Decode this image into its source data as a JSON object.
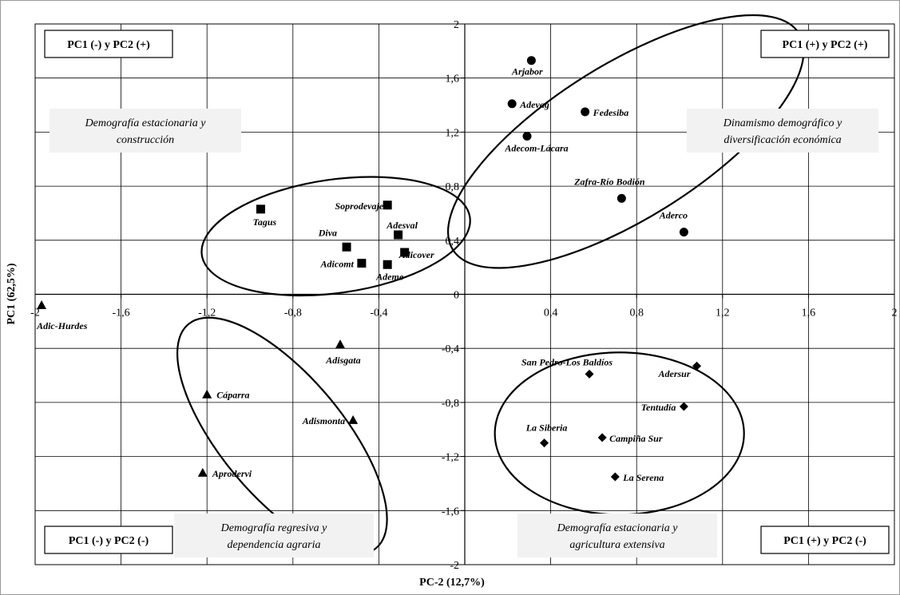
{
  "chart_data": {
    "type": "scatter",
    "title": "",
    "xlabel": "PC-2 (12,7%)",
    "ylabel": "PC1 (62,5%)",
    "xlim": [
      -2,
      2
    ],
    "ylim": [
      -2,
      2
    ],
    "grid": true,
    "x_ticks": [
      "-2",
      "-1,6",
      "-1,2",
      "-0,8",
      "-0,4",
      "0",
      "0,4",
      "0,8",
      "1,2",
      "1,6",
      "2"
    ],
    "y_ticks": [
      "2",
      "1,6",
      "1,2",
      "0,8",
      "0,4",
      "0",
      "-0,4",
      "-0,8",
      "-1,2",
      "-1,6",
      "-2"
    ],
    "series": [
      {
        "marker": "circle",
        "points": [
          {
            "label": "Arjabor",
            "x": 0.31,
            "y": 1.73
          },
          {
            "label": "Adevag",
            "x": 0.22,
            "y": 1.41
          },
          {
            "label": "Fedesiba",
            "x": 0.56,
            "y": 1.35
          },
          {
            "label": "Adecom-Lácara",
            "x": 0.29,
            "y": 1.17
          },
          {
            "label": "Zafra-Río Bodión",
            "x": 0.73,
            "y": 0.71
          },
          {
            "label": "Aderco",
            "x": 1.02,
            "y": 0.46
          }
        ]
      },
      {
        "marker": "square",
        "points": [
          {
            "label": "Tagus",
            "x": -0.95,
            "y": 0.63
          },
          {
            "label": "Soprodevaje",
            "x": -0.36,
            "y": 0.66
          },
          {
            "label": "Adesval",
            "x": -0.31,
            "y": 0.44
          },
          {
            "label": "Diva",
            "x": -0.55,
            "y": 0.35
          },
          {
            "label": "Adicover",
            "x": -0.28,
            "y": 0.31
          },
          {
            "label": "Adicomt",
            "x": -0.48,
            "y": 0.23
          },
          {
            "label": "Ademe",
            "x": -0.36,
            "y": 0.22
          }
        ]
      },
      {
        "marker": "triangle",
        "points": [
          {
            "label": "Adic-Hurdes",
            "x": -1.97,
            "y": -0.08
          },
          {
            "label": "Adisgata",
            "x": -0.58,
            "y": -0.37
          },
          {
            "label": "Cáparra",
            "x": -1.2,
            "y": -0.74
          },
          {
            "label": "Adismonta",
            "x": -0.52,
            "y": -0.93
          },
          {
            "label": "Aprodervi",
            "x": -1.22,
            "y": -1.32
          }
        ]
      },
      {
        "marker": "diamond",
        "points": [
          {
            "label": "San Pedro-Los Baldíos",
            "x": 0.58,
            "y": -0.59
          },
          {
            "label": "Adersur",
            "x": 1.08,
            "y": -0.53
          },
          {
            "label": "Tentudía",
            "x": 1.02,
            "y": -0.83
          },
          {
            "label": "La Siberia",
            "x": 0.37,
            "y": -1.1
          },
          {
            "label": "Campiña Sur",
            "x": 0.64,
            "y": -1.06
          },
          {
            "label": "La Serena",
            "x": 0.7,
            "y": -1.35
          }
        ]
      }
    ],
    "clusters": [
      {
        "cx": 0.75,
        "cy": 1.13,
        "rx": 0.95,
        "ry": 0.57,
        "rot": 32
      },
      {
        "cx": -0.6,
        "cy": 0.43,
        "rx": 0.63,
        "ry": 0.42,
        "rot": 8
      },
      {
        "cx": -0.85,
        "cy": -1.05,
        "rx": 0.68,
        "ry": 0.45,
        "rot": -50
      },
      {
        "cx": 0.72,
        "cy": -1.03,
        "rx": 0.58,
        "ry": 0.6,
        "rot": 0
      }
    ],
    "quadrant_labels": {
      "top_left": "PC1 (-) y PC2 (+)",
      "top_right": "PC1 (+) y PC2 (+)",
      "bottom_left": "PC1 (-) y PC2 (-)",
      "bottom_right": "PC1 (+) y PC2 (-)"
    },
    "descriptions": {
      "top_left": [
        "Demografía estacionaria y",
        "construcción"
      ],
      "top_right": [
        "Dinamismo demográfico y",
        "diversificación económica"
      ],
      "bottom_left": [
        "Demografía regresiva y",
        "dependencia agraria"
      ],
      "bottom_right": [
        "Demografía estacionaria y",
        "agricultura extensiva"
      ]
    }
  }
}
